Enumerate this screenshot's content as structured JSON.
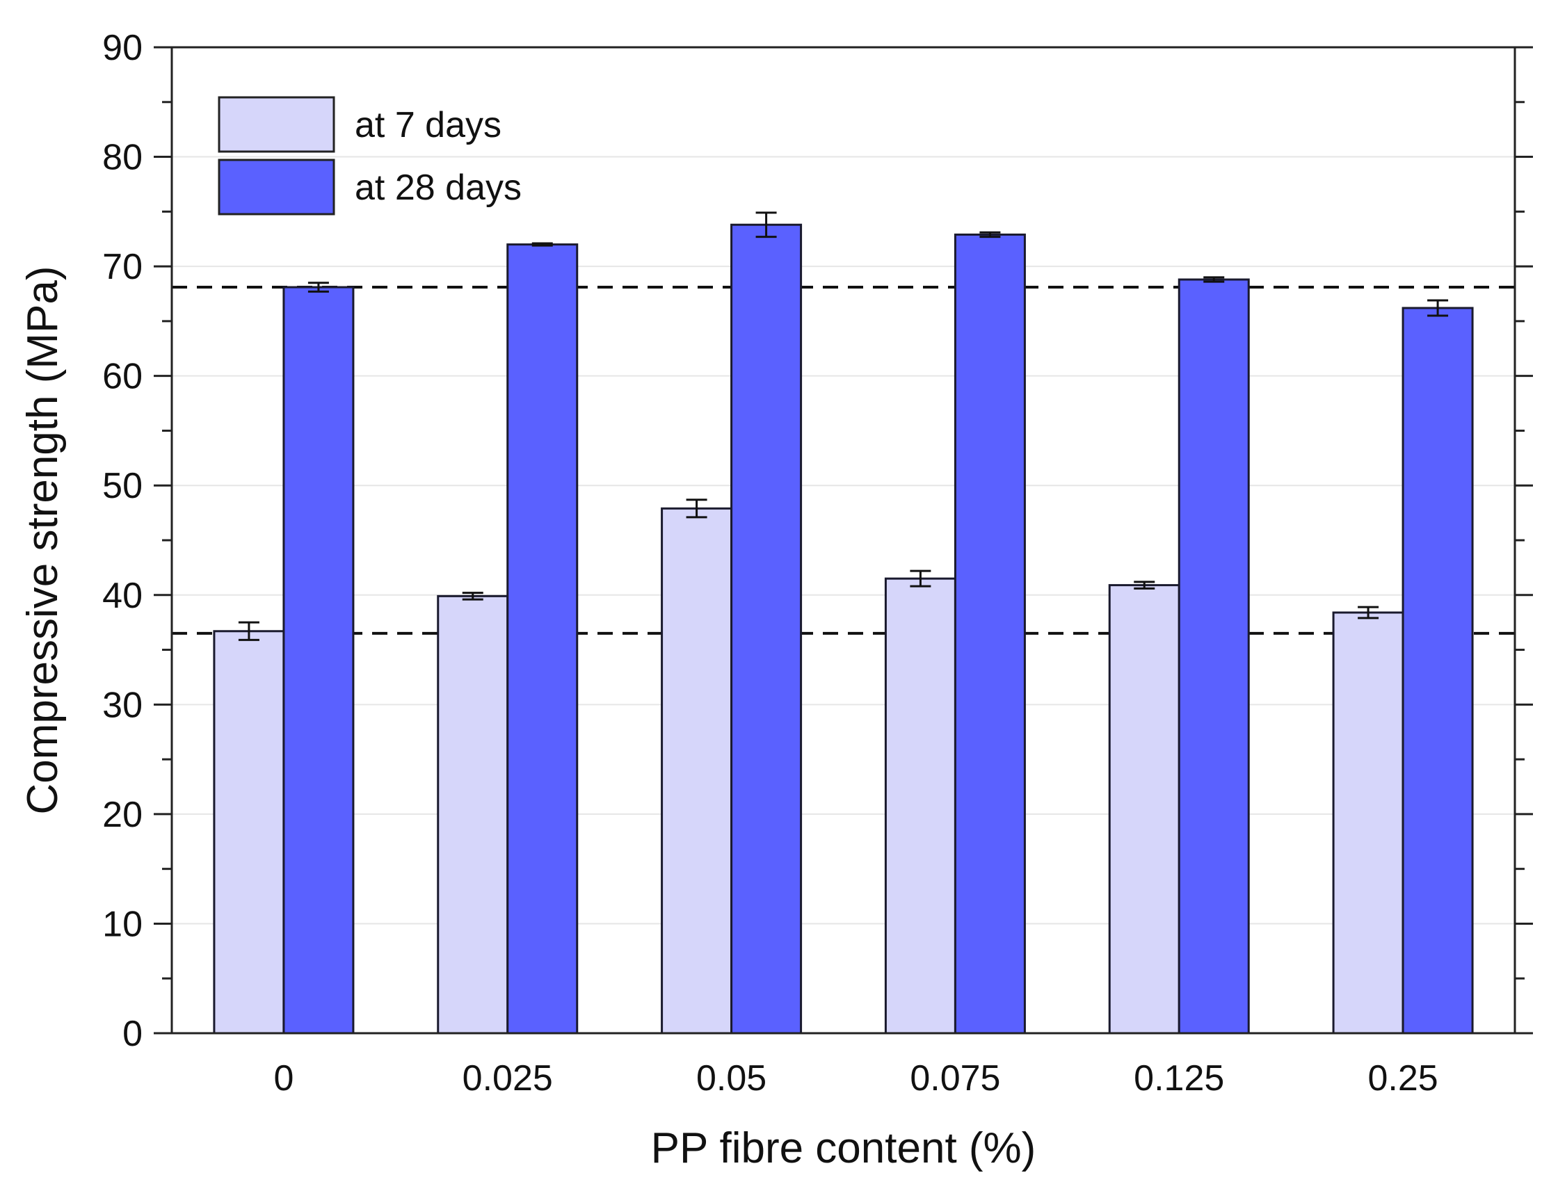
{
  "chart_data": {
    "type": "bar",
    "title": "",
    "xlabel": "PP fibre content (%)",
    "ylabel": "Compressive strength (MPa)",
    "categories": [
      "0",
      "0.025",
      "0.05",
      "0.075",
      "0.125",
      "0.25"
    ],
    "series": [
      {
        "name": "at 7 days",
        "color": "#d6d6fa",
        "values": [
          36.7,
          39.9,
          47.9,
          41.5,
          40.9,
          38.4
        ],
        "errors": [
          0.8,
          0.3,
          0.8,
          0.7,
          0.3,
          0.5
        ]
      },
      {
        "name": "at 28 days",
        "color": "#5a61ff",
        "values": [
          68.1,
          72.0,
          73.8,
          72.9,
          68.8,
          66.2
        ],
        "errors": [
          0.4,
          0.1,
          1.1,
          0.2,
          0.2,
          0.7
        ]
      }
    ],
    "reference_lines": [
      68.1,
      36.5
    ],
    "ylim": [
      0,
      90
    ],
    "yticks": [
      0,
      10,
      20,
      30,
      40,
      50,
      60,
      70,
      80,
      90
    ],
    "grid": true,
    "legend_position": "top-left"
  }
}
